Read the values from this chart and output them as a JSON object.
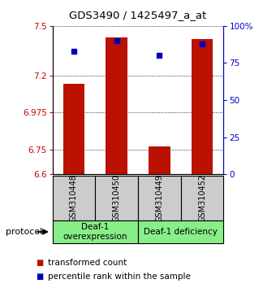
{
  "title": "GDS3490 / 1425497_a_at",
  "samples": [
    "GSM310448",
    "GSM310450",
    "GSM310449",
    "GSM310452"
  ],
  "transformed_counts": [
    7.15,
    7.43,
    6.77,
    7.42
  ],
  "percentile_ranks": [
    83,
    90,
    80,
    88
  ],
  "y_min": 6.6,
  "y_max": 7.5,
  "y_ticks": [
    6.6,
    6.75,
    6.975,
    7.2,
    7.5
  ],
  "y_ticks_labels": [
    "6.6",
    "6.75",
    "6.975",
    "7.2",
    "7.5"
  ],
  "y2_ticks": [
    0,
    25,
    50,
    75,
    100
  ],
  "y2_labels": [
    "0",
    "25",
    "50",
    "75",
    "100%"
  ],
  "bar_color": "#bb1100",
  "dot_color": "#0000bb",
  "group1_label": "Deaf-1\noverexpression",
  "group2_label": "Deaf-1 deficiency",
  "group_bg_color": "#88ee88",
  "sample_bg_color": "#cccccc",
  "legend_bar_label": "transformed count",
  "legend_dot_label": "percentile rank within the sample",
  "protocol_label": "protocol"
}
